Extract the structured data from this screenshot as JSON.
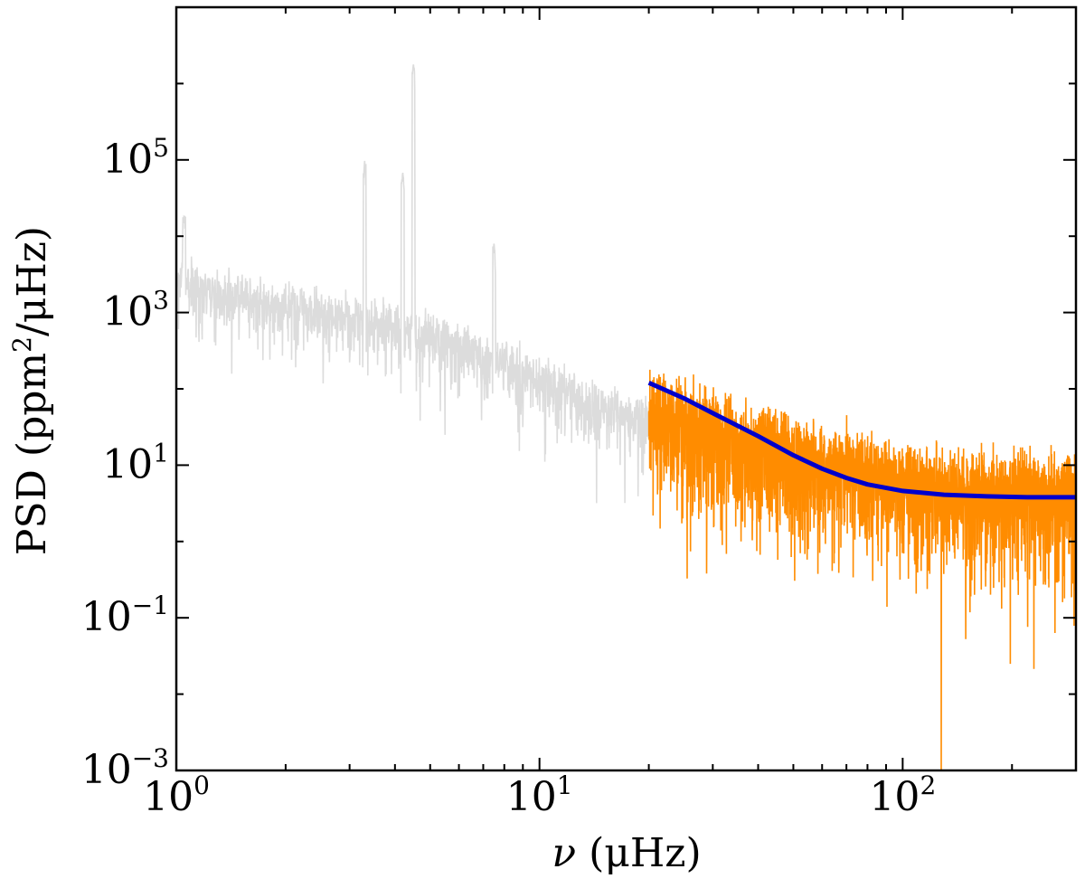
{
  "chart_data": {
    "type": "line",
    "title": "",
    "xlabel": {
      "symbol": "ν",
      "unit": " (μHz)"
    },
    "ylabel": {
      "pre": "PSD (ppm",
      "sup": "2",
      "post": "/μHz)"
    },
    "xscale": "log",
    "yscale": "log",
    "xlim": [
      1,
      300
    ],
    "ylim": [
      0.001,
      10000000
    ],
    "grid": false,
    "legend": "none",
    "x_ticks": [
      {
        "base": "10",
        "exp": "0",
        "value": 1
      },
      {
        "base": "10",
        "exp": "1",
        "value": 10
      },
      {
        "base": "10",
        "exp": "2",
        "value": 100
      }
    ],
    "y_ticks": [
      {
        "base": "10",
        "exp": "−3",
        "value": 0.001
      },
      {
        "base": "10",
        "exp": "−1",
        "value": 0.1
      },
      {
        "base": "10",
        "exp": "1",
        "value": 10
      },
      {
        "base": "10",
        "exp": "3",
        "value": 1000
      },
      {
        "base": "10",
        "exp": "5",
        "value": 100000
      }
    ],
    "series": [
      {
        "role": "psd-excluded",
        "color": "#dcdcdc",
        "x_range": [
          1,
          20
        ],
        "baseline": [
          [
            1,
            3000
          ],
          [
            2,
            1200
          ],
          [
            3,
            1000
          ],
          [
            4,
            800
          ],
          [
            6,
            400
          ],
          [
            10,
            150
          ],
          [
            15,
            60
          ],
          [
            20,
            40
          ]
        ],
        "spread_dex": 0.9,
        "peaks": [
          [
            3.3,
            100000
          ],
          [
            4.5,
            1800000
          ],
          [
            4.2,
            70000
          ],
          [
            7.5,
            8000
          ],
          [
            1.05,
            20000
          ]
        ]
      },
      {
        "role": "psd-fitted-range",
        "color": "#ff8c00",
        "x_range": [
          20,
          300
        ],
        "baseline": [
          [
            20,
            60
          ],
          [
            30,
            30
          ],
          [
            50,
            15
          ],
          [
            80,
            8
          ],
          [
            120,
            6
          ],
          [
            200,
            5
          ],
          [
            300,
            5
          ]
        ],
        "spread_dex": 1.6
      },
      {
        "role": "background-fit",
        "color": "#0000cc",
        "x": [
          20,
          25,
          30,
          40,
          50,
          60,
          70,
          80,
          100,
          130,
          170,
          220,
          300
        ],
        "y": [
          120,
          75,
          48,
          24,
          13.5,
          9,
          6.8,
          5.6,
          4.6,
          4.1,
          3.9,
          3.8,
          3.8
        ]
      }
    ]
  }
}
